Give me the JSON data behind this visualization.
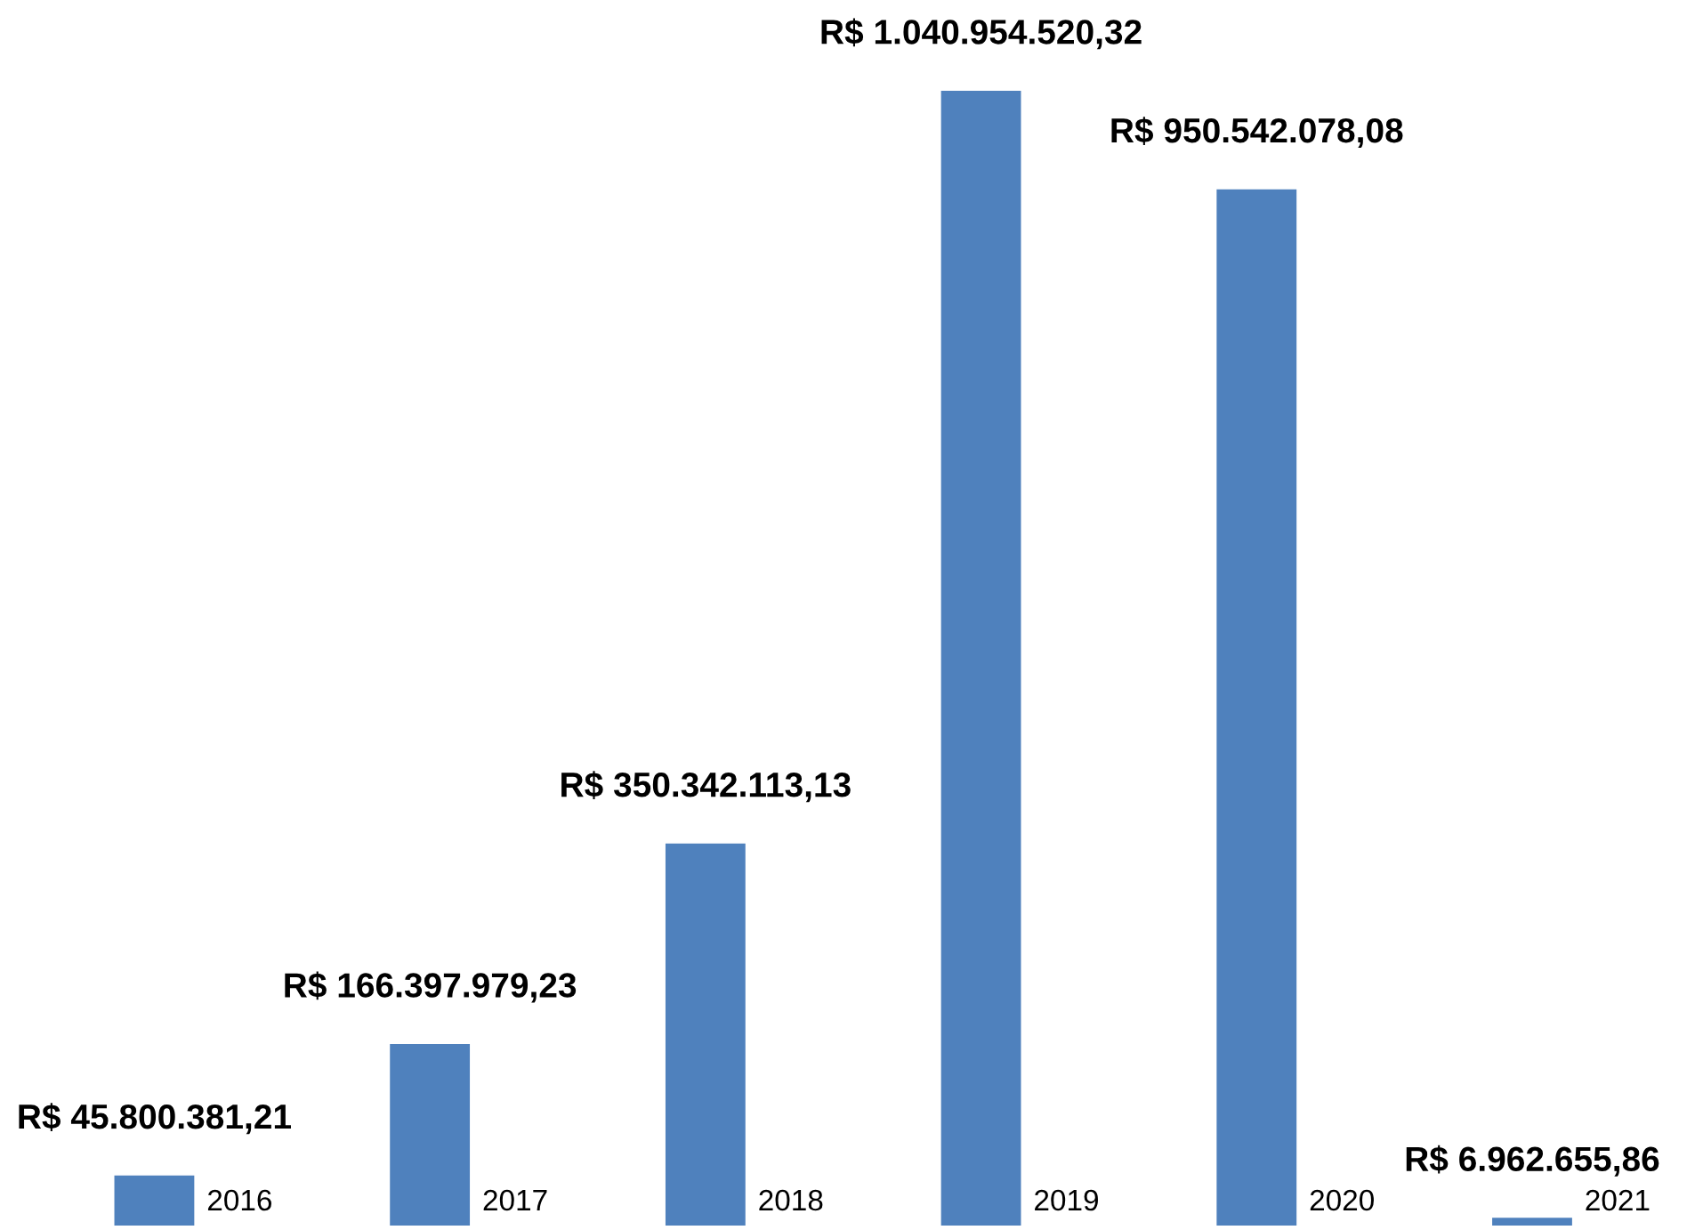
{
  "chart_data": {
    "type": "bar",
    "categories": [
      "2016",
      "2017",
      "2018",
      "2019",
      "2020",
      "2021"
    ],
    "values": [
      45800381.21,
      166397979.23,
      350342113.13,
      1040954520.32,
      950542078.08,
      6962655.86
    ],
    "value_labels": [
      "R$ 45.800.381,21",
      "R$ 166.397.979,23",
      "R$ 350.342.113,13",
      "R$ 1.040.954.520,32",
      "R$ 950.542.078,08",
      "R$ 6.962.655,86"
    ],
    "color": "#4f81bd"
  }
}
